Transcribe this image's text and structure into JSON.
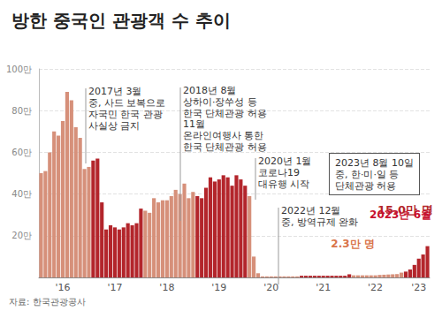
{
  "chart_data": {
    "type": "bar",
    "title": "방한 중국인 관광객 수 추이",
    "source": "자료: 한국관광공사",
    "categories": [
      null,
      null,
      null,
      null,
      null,
      "'16",
      null,
      null,
      null,
      null,
      null,
      null,
      null,
      null,
      null,
      null,
      null,
      "'17",
      null,
      null,
      null,
      null,
      null,
      null,
      null,
      null,
      null,
      null,
      null,
      "'18",
      null,
      null,
      null,
      null,
      null,
      null,
      null,
      null,
      null,
      null,
      null,
      "'19",
      null,
      null,
      null,
      null,
      null,
      null,
      null,
      null,
      null,
      null,
      null,
      "'20",
      null,
      null,
      null,
      null,
      null,
      null,
      null,
      null,
      null,
      null,
      null,
      "'21",
      null,
      null,
      null,
      null,
      null,
      null,
      null,
      null,
      null,
      null,
      null,
      "'22",
      null,
      null,
      null,
      null,
      null,
      null,
      null,
      null,
      null,
      "'23",
      null,
      null
    ],
    "values": [
      50,
      51,
      60,
      70,
      68,
      75,
      89,
      85,
      72,
      67,
      52,
      53,
      56,
      57,
      36,
      23,
      25,
      24,
      23,
      24,
      26,
      25,
      26,
      33,
      32,
      31,
      38,
      36,
      37,
      37,
      39,
      42,
      40,
      45,
      38,
      41,
      39,
      38,
      43,
      48,
      46,
      47,
      49,
      48,
      44,
      49,
      47,
      44,
      39,
      10,
      2,
      0.5,
      0.5,
      0.5,
      0.5,
      0.5,
      0.5,
      0.5,
      0.5,
      0.5,
      0.8,
      0.8,
      0.8,
      0.8,
      0.8,
      0.8,
      0.8,
      0.8,
      0.8,
      0.8,
      0.8,
      1.5,
      1,
      1,
      1,
      1,
      1,
      1,
      1.2,
      1.3,
      1.4,
      1.5,
      1.6,
      2.3,
      2.8,
      3.8,
      6,
      9,
      11,
      15
    ],
    "value_labels": [
      null,
      null,
      null,
      null,
      null,
      null,
      null,
      null,
      null,
      null,
      null,
      null,
      null,
      null,
      null,
      null,
      null,
      null,
      null,
      null,
      null,
      null,
      null,
      null,
      null,
      null,
      null,
      null,
      null,
      null,
      null,
      null,
      null,
      null,
      null,
      null,
      null,
      null,
      null,
      null,
      null,
      null,
      null,
      null,
      null,
      null,
      null,
      null,
      null,
      null,
      null,
      null,
      null,
      null,
      null,
      null,
      null,
      null,
      null,
      null,
      null,
      null,
      null,
      null,
      null,
      null,
      null,
      null,
      null,
      null,
      null,
      null,
      null,
      null,
      null,
      null,
      null,
      null,
      null,
      null,
      null,
      null,
      null,
      "2.3만 명",
      null,
      null,
      null,
      null,
      null,
      "15.0만 명"
    ],
    "data_labels": true,
    "colors": [
      "#d6907a",
      "#d6907a",
      "#d6907a",
      "#d6907a",
      "#d6907a",
      "#d6907a",
      "#d6907a",
      "#d6907a",
      "#d6907a",
      "#d6907a",
      "#d6907a",
      "#d6907a",
      "#b3252b",
      "#b3252b",
      "#b3252b",
      "#b3252b",
      "#b3252b",
      "#b3252b",
      "#b3252b",
      "#b3252b",
      "#b3252b",
      "#b3252b",
      "#b3252b",
      "#b3252b",
      "#d6907a",
      "#d6907a",
      "#d6907a",
      "#d6907a",
      "#d6907a",
      "#d6907a",
      "#d6907a",
      "#d6907a",
      "#d6907a",
      "#d6907a",
      "#d6907a",
      "#d6907a",
      "#b3252b",
      "#b3252b",
      "#b3252b",
      "#b3252b",
      "#b3252b",
      "#b3252b",
      "#b3252b",
      "#b3252b",
      "#b3252b",
      "#b3252b",
      "#b3252b",
      "#b3252b",
      "#d6907a",
      "#d6907a",
      "#d6907a",
      "#d6907a",
      "#d6907a",
      "#d6907a",
      "#d6907a",
      "#d6907a",
      "#d6907a",
      "#d6907a",
      "#d6907a",
      "#d6907a",
      "#b3252b",
      "#b3252b",
      "#b3252b",
      "#b3252b",
      "#b3252b",
      "#b3252b",
      "#b3252b",
      "#b3252b",
      "#b3252b",
      "#b3252b",
      "#b3252b",
      "#b3252b",
      "#d6907a",
      "#d6907a",
      "#d6907a",
      "#d6907a",
      "#d6907a",
      "#d6907a",
      "#d6907a",
      "#d6907a",
      "#d6907a",
      "#d6907a",
      "#d6907a",
      "#d6907a",
      "#b3252b",
      "#b3252b",
      "#b3252b",
      "#b3252b",
      "#b3252b",
      "#b3252b"
    ],
    "ylim": [
      0,
      100
    ],
    "yticks": [
      {
        "value": 20,
        "label": "20만"
      },
      {
        "value": 40,
        "label": "40만"
      },
      {
        "value": 60,
        "label": "60만"
      },
      {
        "value": 80,
        "label": "80만"
      },
      {
        "value": 100,
        "label": "100만"
      }
    ],
    "grid": true,
    "annotations": [
      "2017년 3월\n중, 사드 보복으로\n자국민 한국 관광\n사실상 금지",
      "2018년 8월\n상하이·장쑤성 등\n한국 단체관광 허용",
      "11월\n온라인여행사 통한\n한국 단체관광 허용",
      "2020년 1월\n코로나19\n대유행 시작",
      "2022년 12월\n중, 방역규제 완화",
      "2023년 8월 10일\n중, 한·미·일 등\n단체관광 허용",
      "2023년 6월"
    ]
  }
}
